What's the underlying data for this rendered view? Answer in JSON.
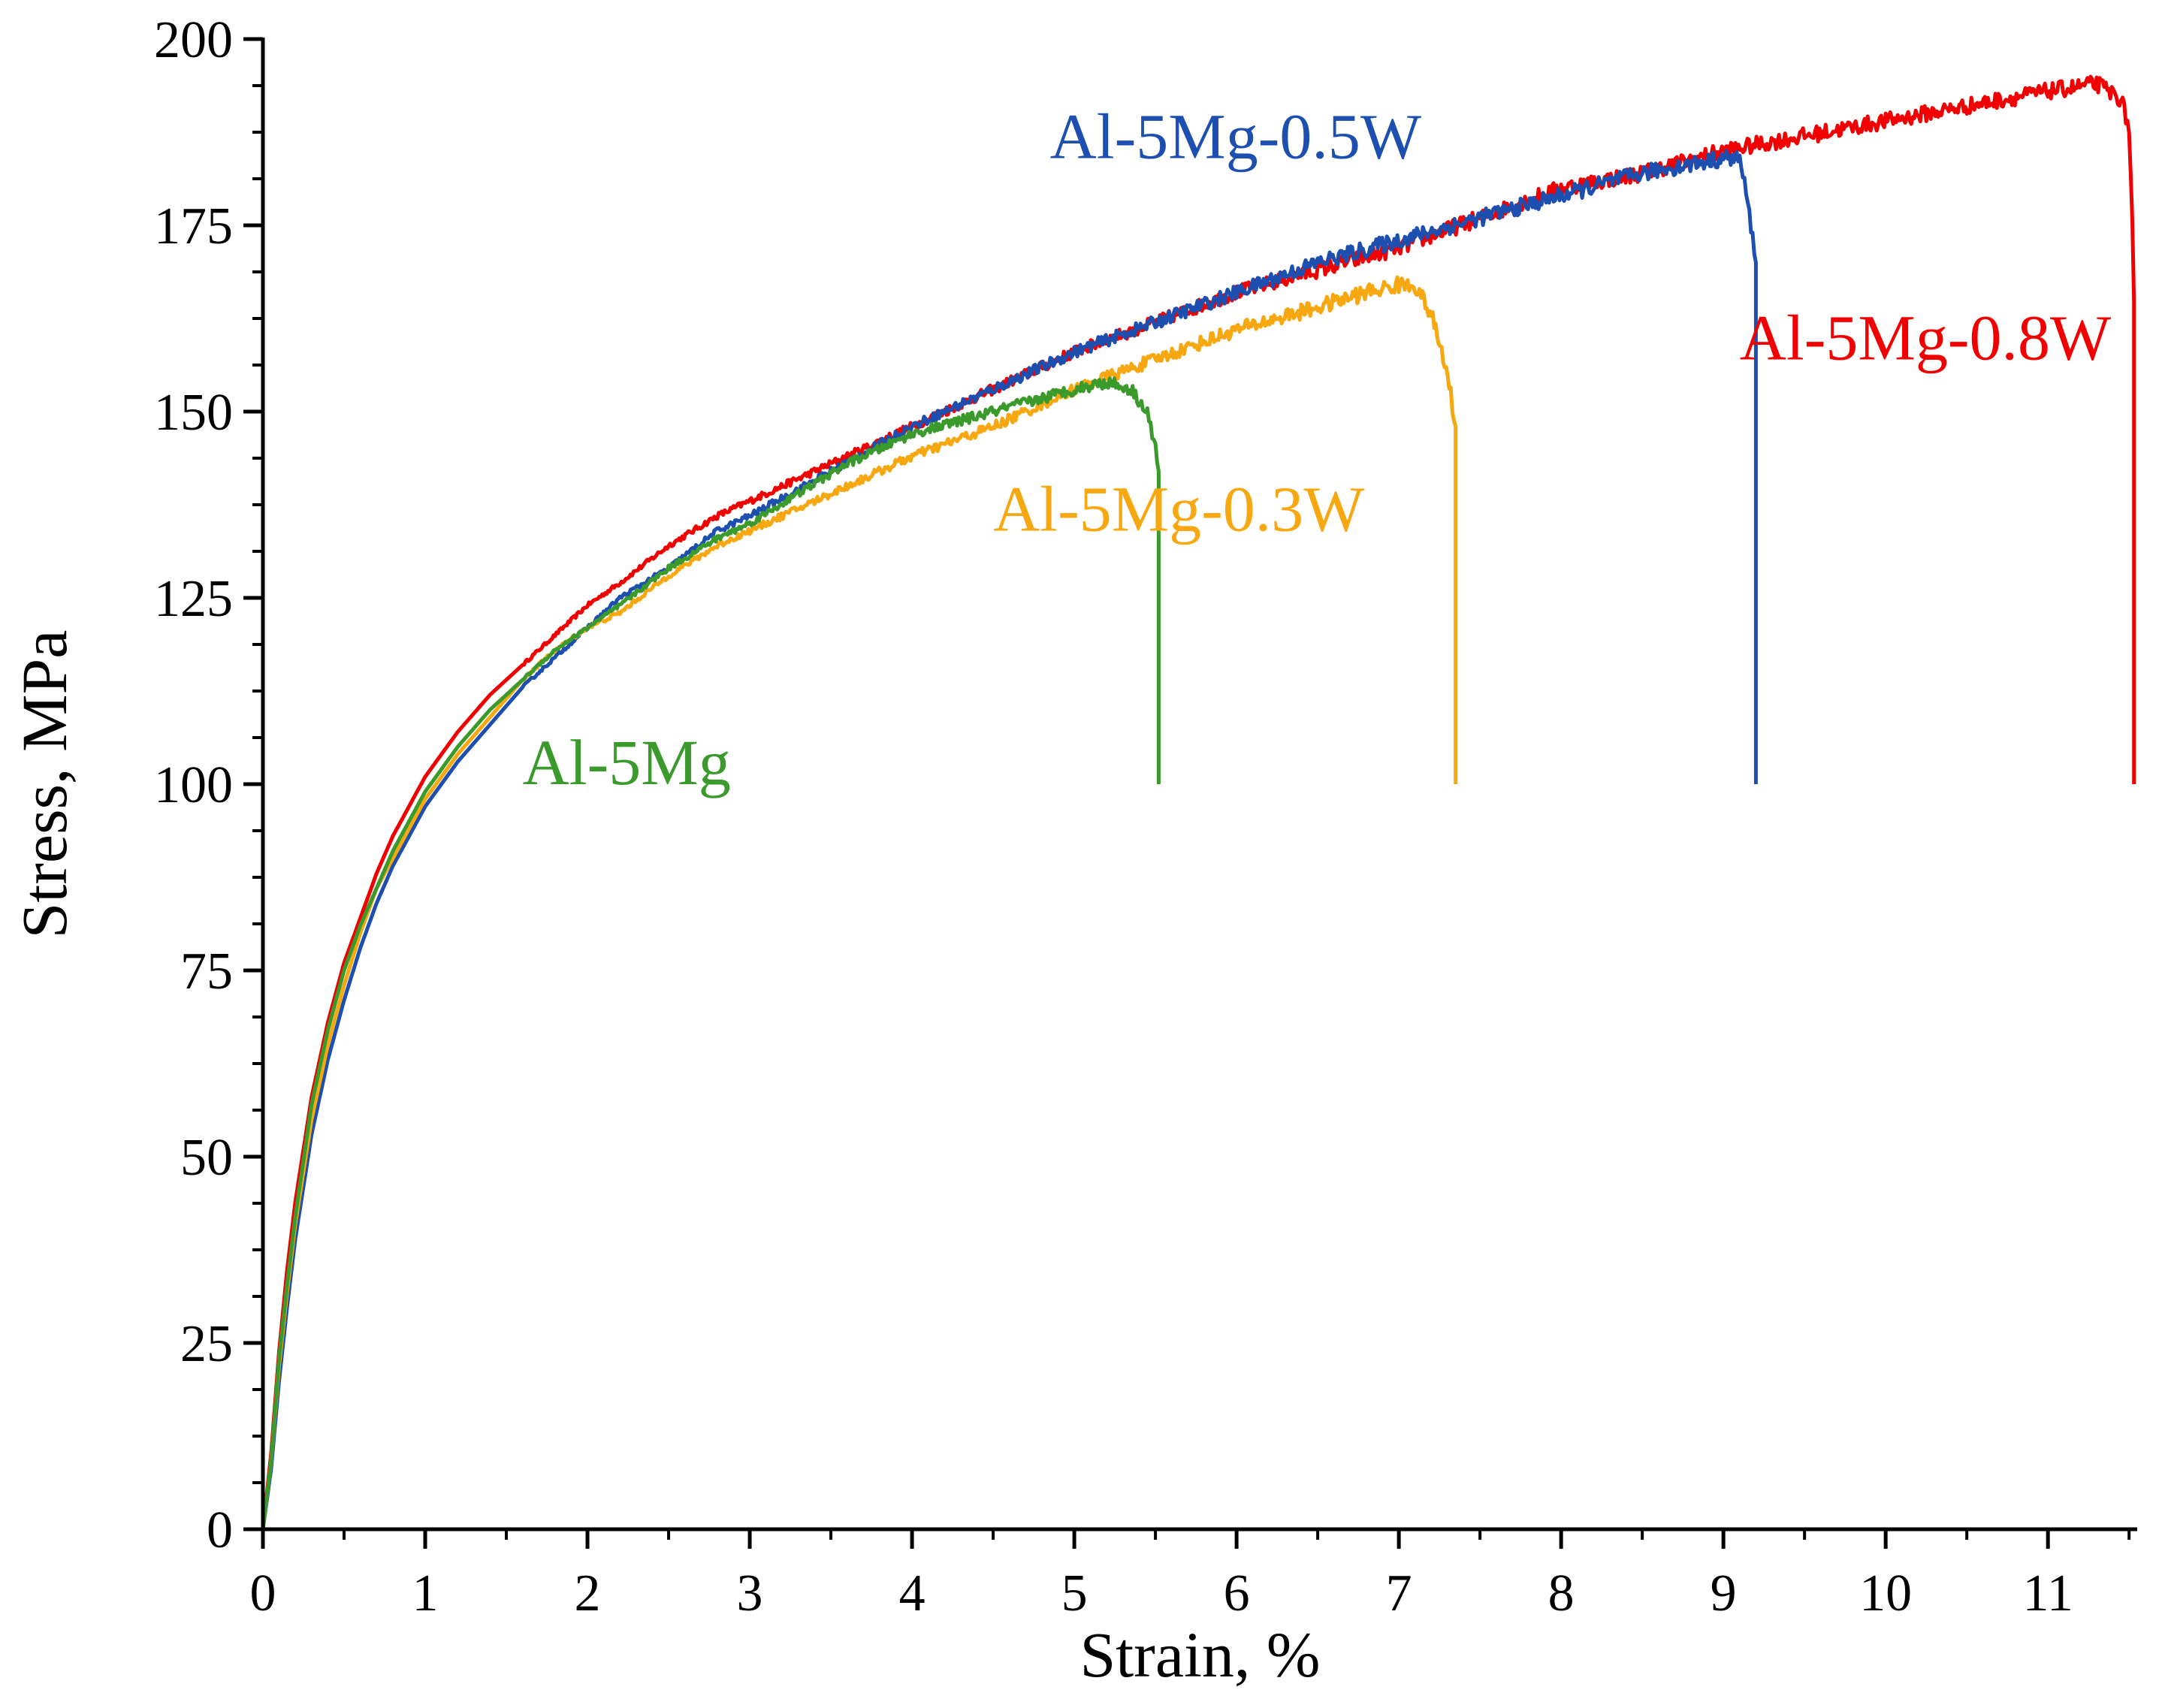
{
  "chart_data": {
    "type": "line",
    "title": "",
    "xlabel": "Strain, %",
    "ylabel": "Stress, MPa",
    "xlim": [
      0,
      11.55
    ],
    "ylim": [
      0,
      200
    ],
    "x_ticks": [
      0,
      1,
      2,
      3,
      4,
      5,
      6,
      7,
      8,
      9,
      10,
      11
    ],
    "y_ticks": [
      0,
      25,
      50,
      75,
      100,
      125,
      150,
      175,
      200
    ],
    "grid": false,
    "legend": "none",
    "series": [
      {
        "name": "Al-5Mg-0.8W",
        "label": "Al-5Mg-0.8W",
        "color": "#f00000",
        "label_anchor": [
          9.1,
          157
        ],
        "points": [
          [
            0,
            0
          ],
          [
            0.05,
            10
          ],
          [
            0.1,
            24
          ],
          [
            0.15,
            35
          ],
          [
            0.2,
            44
          ],
          [
            0.3,
            58
          ],
          [
            0.4,
            68
          ],
          [
            0.5,
            76
          ],
          [
            0.6,
            82
          ],
          [
            0.7,
            88
          ],
          [
            0.8,
            93
          ],
          [
            0.9,
            97
          ],
          [
            1.0,
            101
          ],
          [
            1.2,
            107
          ],
          [
            1.4,
            112
          ],
          [
            1.6,
            116
          ],
          [
            1.8,
            120
          ],
          [
            2.0,
            124
          ],
          [
            2.2,
            127
          ],
          [
            2.5,
            132
          ],
          [
            2.8,
            136
          ],
          [
            3.0,
            138
          ],
          [
            3.5,
            143
          ],
          [
            4.0,
            148
          ],
          [
            4.5,
            153
          ],
          [
            5.0,
            158
          ],
          [
            5.5,
            162
          ],
          [
            6.0,
            166
          ],
          [
            6.5,
            169
          ],
          [
            7.0,
            172
          ],
          [
            7.5,
            176
          ],
          [
            8.0,
            180
          ],
          [
            8.5,
            182
          ],
          [
            9.0,
            185
          ],
          [
            9.5,
            187
          ],
          [
            10.0,
            189
          ],
          [
            10.5,
            191
          ],
          [
            11.0,
            193
          ],
          [
            11.3,
            194
          ],
          [
            11.45,
            192
          ],
          [
            11.5,
            188
          ],
          [
            11.52,
            175
          ],
          [
            11.53,
            165
          ],
          [
            11.53,
            100
          ]
        ]
      },
      {
        "name": "Al-5Mg-0.5W",
        "label": "Al-5Mg-0.5W",
        "color": "#1c4fb0",
        "label_anchor": [
          4.85,
          184
        ],
        "points": [
          [
            0,
            0
          ],
          [
            0.05,
            8
          ],
          [
            0.1,
            20
          ],
          [
            0.15,
            30
          ],
          [
            0.2,
            39
          ],
          [
            0.3,
            53
          ],
          [
            0.4,
            63
          ],
          [
            0.5,
            71
          ],
          [
            0.6,
            78
          ],
          [
            0.7,
            84
          ],
          [
            0.8,
            89
          ],
          [
            0.9,
            93
          ],
          [
            1.0,
            97
          ],
          [
            1.2,
            103
          ],
          [
            1.4,
            108
          ],
          [
            1.6,
            113
          ],
          [
            1.8,
            117
          ],
          [
            2.0,
            121
          ],
          [
            2.2,
            125
          ],
          [
            2.5,
            129
          ],
          [
            2.8,
            134
          ],
          [
            3.0,
            136
          ],
          [
            3.5,
            142
          ],
          [
            4.0,
            148
          ],
          [
            4.5,
            153
          ],
          [
            5.0,
            158
          ],
          [
            5.5,
            162
          ],
          [
            6.0,
            166
          ],
          [
            6.5,
            170
          ],
          [
            7.0,
            173
          ],
          [
            7.5,
            176
          ],
          [
            8.0,
            179
          ],
          [
            8.5,
            182
          ],
          [
            9.0,
            184
          ],
          [
            9.1,
            184
          ],
          [
            9.15,
            178
          ],
          [
            9.2,
            170
          ],
          [
            9.2,
            100
          ]
        ]
      },
      {
        "name": "Al-5Mg-0.3W",
        "label": "Al-5Mg-0.3W",
        "color": "#f7a70f",
        "label_anchor": [
          4.5,
          134
        ],
        "points": [
          [
            0,
            0
          ],
          [
            0.05,
            9
          ],
          [
            0.1,
            22
          ],
          [
            0.15,
            32
          ],
          [
            0.2,
            41
          ],
          [
            0.3,
            55
          ],
          [
            0.4,
            65
          ],
          [
            0.5,
            73
          ],
          [
            0.6,
            80
          ],
          [
            0.7,
            86
          ],
          [
            0.8,
            90
          ],
          [
            0.9,
            94
          ],
          [
            1.0,
            98
          ],
          [
            1.2,
            104
          ],
          [
            1.4,
            109
          ],
          [
            1.6,
            114
          ],
          [
            1.8,
            118
          ],
          [
            2.0,
            121
          ],
          [
            2.2,
            123
          ],
          [
            2.5,
            128
          ],
          [
            2.8,
            132
          ],
          [
            3.0,
            134
          ],
          [
            3.5,
            139
          ],
          [
            4.0,
            144
          ],
          [
            4.5,
            148
          ],
          [
            5.0,
            153
          ],
          [
            5.5,
            157
          ],
          [
            6.0,
            161
          ],
          [
            6.5,
            164
          ],
          [
            6.8,
            166
          ],
          [
            7.0,
            167
          ],
          [
            7.1,
            167
          ],
          [
            7.2,
            163
          ],
          [
            7.3,
            155
          ],
          [
            7.35,
            148
          ],
          [
            7.35,
            100
          ]
        ]
      },
      {
        "name": "Al-5Mg",
        "label": "Al-5Mg",
        "color": "#3a9a2c",
        "label_anchor": [
          1.6,
          100
        ],
        "points": [
          [
            0,
            0
          ],
          [
            0.05,
            9
          ],
          [
            0.1,
            23
          ],
          [
            0.15,
            33
          ],
          [
            0.2,
            42
          ],
          [
            0.3,
            57
          ],
          [
            0.4,
            67
          ],
          [
            0.5,
            75
          ],
          [
            0.6,
            81
          ],
          [
            0.7,
            86
          ],
          [
            0.8,
            91
          ],
          [
            0.9,
            95
          ],
          [
            1.0,
            99
          ],
          [
            1.2,
            105
          ],
          [
            1.4,
            110
          ],
          [
            1.6,
            114
          ],
          [
            1.8,
            118
          ],
          [
            2.0,
            121
          ],
          [
            2.2,
            124
          ],
          [
            2.5,
            129
          ],
          [
            2.8,
            133
          ],
          [
            3.0,
            135
          ],
          [
            3.3,
            139
          ],
          [
            3.6,
            143
          ],
          [
            4.0,
            147
          ],
          [
            4.5,
            150
          ],
          [
            5.0,
            153
          ],
          [
            5.2,
            154
          ],
          [
            5.35,
            153
          ],
          [
            5.45,
            150
          ],
          [
            5.5,
            145
          ],
          [
            5.52,
            142
          ],
          [
            5.52,
            100
          ]
        ]
      }
    ]
  }
}
